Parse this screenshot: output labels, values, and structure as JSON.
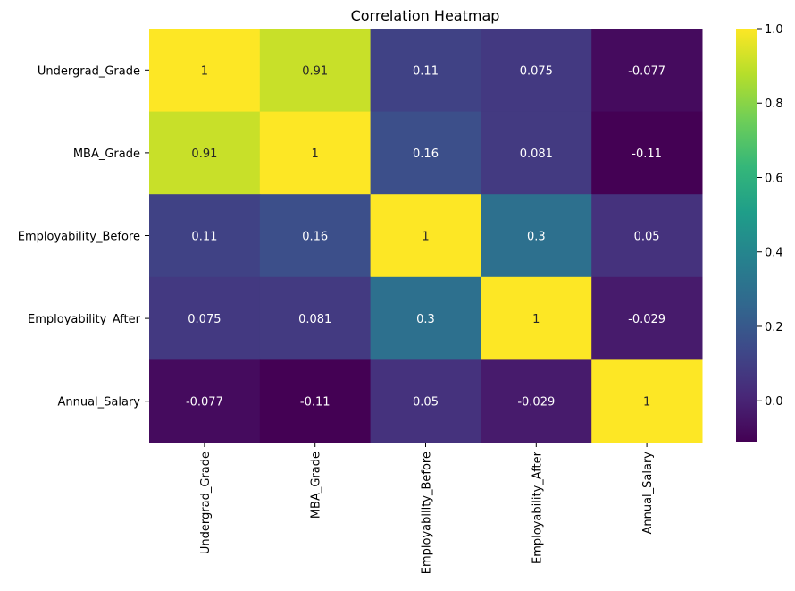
{
  "chart_data": {
    "type": "heatmap",
    "title": "Correlation Heatmap",
    "xlabel": "",
    "ylabel": "",
    "row_labels": [
      "Undergrad_Grade",
      "MBA_Grade",
      "Employability_Before",
      "Employability_After",
      "Annual_Salary"
    ],
    "col_labels": [
      "Undergrad_Grade",
      "MBA_Grade",
      "Employability_Before",
      "Employability_After",
      "Annual_Salary"
    ],
    "values": [
      [
        1,
        0.91,
        0.11,
        0.075,
        -0.077
      ],
      [
        0.91,
        1,
        0.16,
        0.081,
        -0.11
      ],
      [
        0.11,
        0.16,
        1,
        0.3,
        0.05
      ],
      [
        0.075,
        0.081,
        0.3,
        1,
        -0.029
      ],
      [
        -0.077,
        -0.11,
        0.05,
        -0.029,
        1
      ]
    ],
    "annotations": [
      [
        "1",
        "0.91",
        "0.11",
        "0.075",
        "-0.077"
      ],
      [
        "0.91",
        "1",
        "0.16",
        "0.081",
        "-0.11"
      ],
      [
        "0.11",
        "0.16",
        "1",
        "0.3",
        "0.05"
      ],
      [
        "0.075",
        "0.081",
        "0.3",
        "1",
        "-0.029"
      ],
      [
        "-0.077",
        "-0.11",
        "0.05",
        "-0.029",
        "1"
      ]
    ],
    "colormap": "viridis",
    "color_range": [
      -0.11,
      1
    ],
    "colorbar_ticks": [
      1.0,
      0.8,
      0.6,
      0.4,
      0.2,
      0.0
    ],
    "colorbar_tick_labels": [
      "1.0",
      "0.8",
      "0.6",
      "0.4",
      "0.2",
      "0.0"
    ],
    "grid": false,
    "legend": "colorbar-right"
  }
}
